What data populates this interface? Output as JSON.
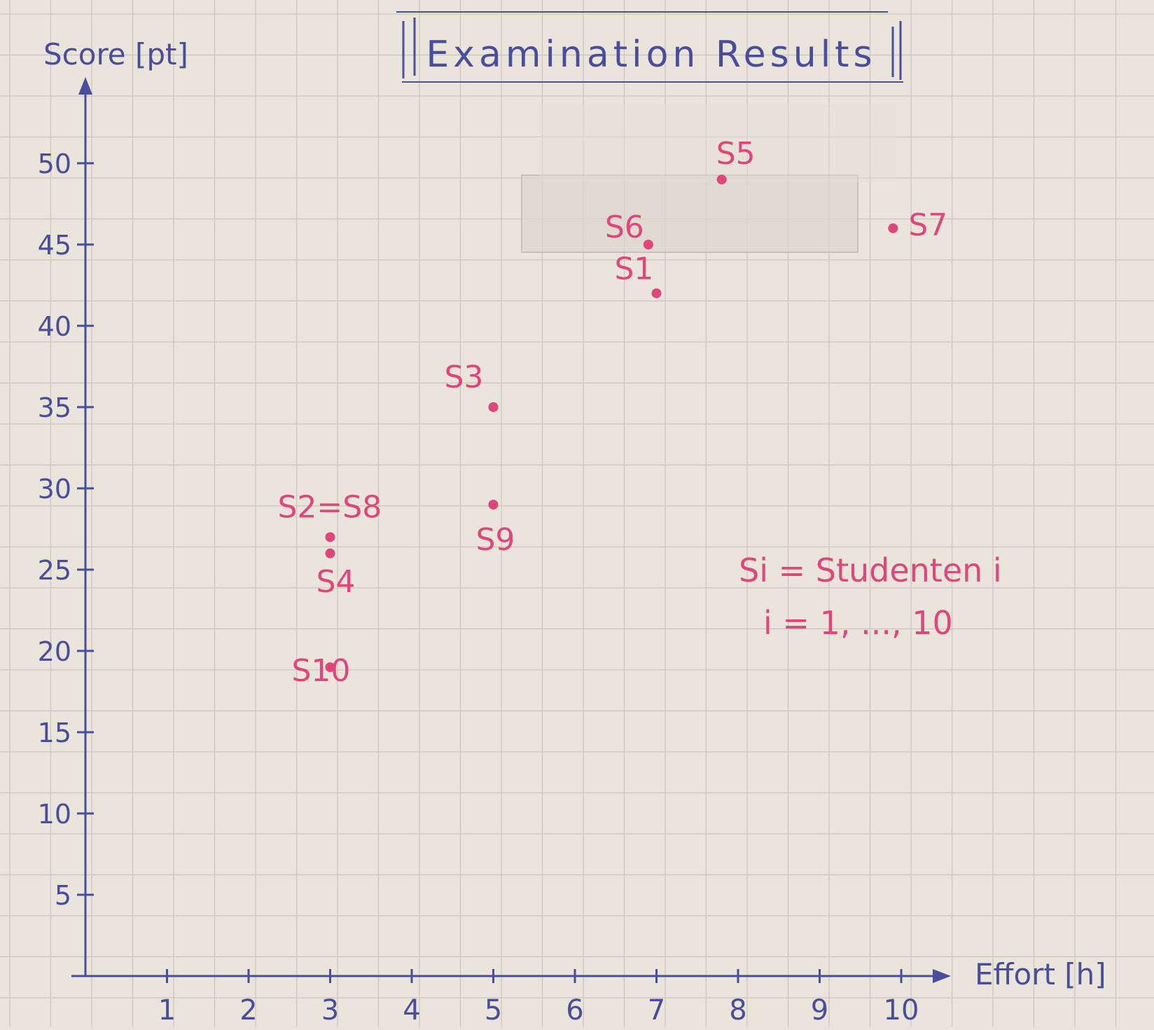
{
  "colors": {
    "paper": "#e9e5da",
    "grid": "#c9c6bd",
    "ink": "#4a4c9c",
    "points": "#e0457c",
    "tape": "#ddd8cc"
  },
  "chart_data": {
    "type": "scatter",
    "title": "Examination Results",
    "xlabel": "Effort [h]",
    "ylabel": "Score [pt]",
    "xlim": [
      0,
      10.5
    ],
    "ylim": [
      0,
      54
    ],
    "grid": true,
    "xticks": [
      "1",
      "2",
      "3",
      "4",
      "5",
      "6",
      "7",
      "8",
      "9",
      "10"
    ],
    "yticks": [
      "5",
      "10",
      "15",
      "20",
      "25",
      "30",
      "35",
      "40",
      "45",
      "50"
    ],
    "points": [
      {
        "label": "S1",
        "sub": "1",
        "x": 7.0,
        "y": 42
      },
      {
        "label": "S2=S8",
        "sub": "2",
        "x": 3.0,
        "y": 27
      },
      {
        "label": "S3",
        "sub": "3",
        "x": 5.0,
        "y": 35
      },
      {
        "label": "S4",
        "sub": "4",
        "x": 3.0,
        "y": 26
      },
      {
        "label": "S5",
        "sub": "5",
        "x": 7.8,
        "y": 49
      },
      {
        "label": "S6",
        "sub": "6",
        "x": 6.9,
        "y": 45
      },
      {
        "label": "S7",
        "sub": "7",
        "x": 9.9,
        "y": 46
      },
      {
        "label": "S9",
        "sub": "9",
        "x": 5.0,
        "y": 29
      },
      {
        "label": "S10",
        "sub": "10",
        "x": 3.0,
        "y": 19
      }
    ],
    "annotations": [
      "Si = Studenten i",
      "i = 1, ..., 10"
    ]
  }
}
